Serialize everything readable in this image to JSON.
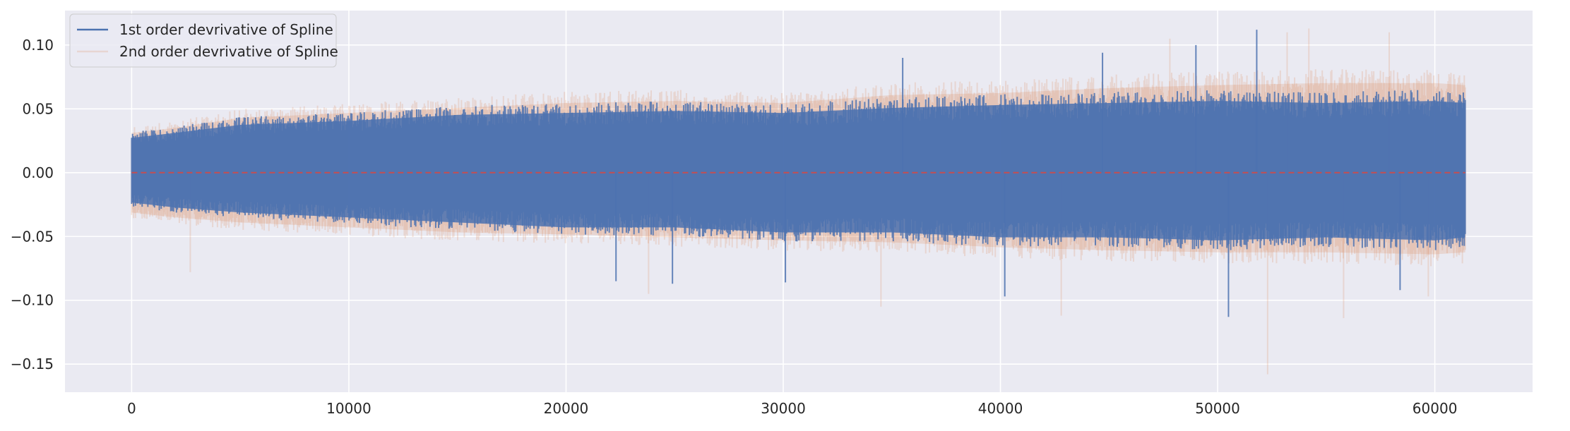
{
  "chart_data": {
    "type": "line",
    "title": "",
    "xlabel": "",
    "ylabel": "",
    "xlim": [
      -3070,
      64500
    ],
    "ylim": [
      -0.172,
      0.127
    ],
    "x_range": [
      0,
      61400
    ],
    "x_ticks": [
      0,
      10000,
      20000,
      30000,
      40000,
      50000,
      60000
    ],
    "x_tick_labels": [
      "0",
      "10000",
      "20000",
      "30000",
      "40000",
      "50000",
      "60000"
    ],
    "y_ticks": [
      0.1,
      0.05,
      0.0,
      -0.05,
      -0.1,
      -0.15
    ],
    "y_tick_labels": [
      "0.10",
      "0.05",
      "0.00",
      "−0.05",
      "−0.10",
      "−0.15"
    ],
    "grid": true,
    "legend_position": "top-left",
    "background_color": "#eaeaf2",
    "series": [
      {
        "name": "1st order devrivative of Spline",
        "color": "#4c72b0",
        "envelope_x": [
          0,
          2000,
          5000,
          10000,
          15000,
          20000,
          25000,
          30000,
          35000,
          40000,
          45000,
          50000,
          55000,
          60000,
          61400
        ],
        "envelope_upper": [
          0.035,
          0.04,
          0.048,
          0.052,
          0.058,
          0.06,
          0.062,
          0.06,
          0.065,
          0.068,
          0.07,
          0.072,
          0.07,
          0.072,
          0.07
        ],
        "envelope_lower": [
          -0.03,
          -0.035,
          -0.04,
          -0.045,
          -0.05,
          -0.055,
          -0.055,
          -0.06,
          -0.06,
          -0.065,
          -0.065,
          -0.068,
          -0.065,
          -0.068,
          -0.065
        ],
        "spikes": [
          {
            "x": 51800,
            "y": 0.112
          },
          {
            "x": 50500,
            "y": -0.113
          },
          {
            "x": 35500,
            "y": 0.09
          },
          {
            "x": 40200,
            "y": -0.097
          },
          {
            "x": 49000,
            "y": 0.1
          },
          {
            "x": 22300,
            "y": -0.085
          },
          {
            "x": 30100,
            "y": -0.086
          },
          {
            "x": 44700,
            "y": 0.094
          },
          {
            "x": 58400,
            "y": -0.092
          },
          {
            "x": 24900,
            "y": -0.087
          }
        ]
      },
      {
        "name": "2nd order devrivative of Spline",
        "color": "#dd8452",
        "opacity": 0.2,
        "envelope_x": [
          0,
          2000,
          5000,
          10000,
          15000,
          20000,
          25000,
          30000,
          35000,
          40000,
          45000,
          50000,
          55000,
          60000,
          61400
        ],
        "envelope_upper": [
          0.04,
          0.045,
          0.055,
          0.06,
          0.065,
          0.07,
          0.072,
          0.07,
          0.078,
          0.08,
          0.085,
          0.088,
          0.09,
          0.09,
          0.088
        ],
        "envelope_lower": [
          -0.04,
          -0.045,
          -0.05,
          -0.055,
          -0.06,
          -0.062,
          -0.065,
          -0.068,
          -0.07,
          -0.075,
          -0.078,
          -0.08,
          -0.08,
          -0.082,
          -0.08
        ],
        "spikes": [
          {
            "x": 52300,
            "y": -0.158
          },
          {
            "x": 54200,
            "y": 0.113
          },
          {
            "x": 57900,
            "y": 0.11
          },
          {
            "x": 53200,
            "y": 0.11
          },
          {
            "x": 34500,
            "y": -0.105
          },
          {
            "x": 42800,
            "y": -0.112
          },
          {
            "x": 55800,
            "y": -0.114
          },
          {
            "x": 59700,
            "y": -0.097
          },
          {
            "x": 23800,
            "y": -0.095
          },
          {
            "x": 47800,
            "y": 0.105
          },
          {
            "x": 2700,
            "y": -0.078
          }
        ]
      },
      {
        "name": "",
        "color": "#c44e52",
        "style": "dashed",
        "x": [
          0,
          61400
        ],
        "y": [
          0.0,
          0.0
        ]
      }
    ]
  }
}
